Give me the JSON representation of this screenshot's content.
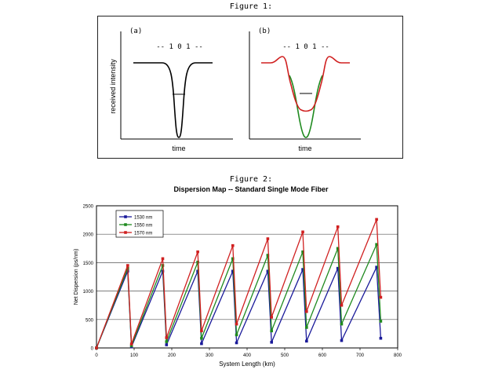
{
  "figure1": {
    "caption": "Figure 1:",
    "panels": [
      {
        "label": "(a)",
        "bits": "-- 1 0 1 --",
        "ylabel": "received intensity",
        "xlabel": "time"
      },
      {
        "label": "(b)",
        "bits": "-- 1 0 1 --",
        "xlabel": "time"
      }
    ],
    "colors": {
      "trace_a": "#000000",
      "trace_b_red": "#d02020",
      "trace_b_green": "#1f8a1f"
    }
  },
  "figure2": {
    "caption": "Figure 2:",
    "title": "Dispersion Map -- Standard Single Mode Fiber"
  },
  "chart_data": {
    "type": "line",
    "title": "Dispersion Map -- Standard Single Mode Fiber",
    "xlabel": "System Length (km)",
    "ylabel": "Net Dispersion (ps/nm)",
    "xlim": [
      0,
      800
    ],
    "ylim": [
      0,
      2500
    ],
    "xticks": [
      0,
      100,
      200,
      300,
      400,
      500,
      600,
      700,
      800
    ],
    "yticks": [
      0,
      500,
      1000,
      1500,
      2000,
      2500
    ],
    "grid": "horizontal",
    "legend": "top-left",
    "series": [
      {
        "name": "1530 nm",
        "color": "#1a1a9a",
        "points": [
          [
            0,
            0
          ],
          [
            83,
            1350
          ],
          [
            93,
            20
          ],
          [
            176,
            1350
          ],
          [
            186,
            55
          ],
          [
            269,
            1350
          ],
          [
            279,
            75
          ],
          [
            362,
            1350
          ],
          [
            372,
            90
          ],
          [
            455,
            1350
          ],
          [
            465,
            100
          ],
          [
            548,
            1380
          ],
          [
            558,
            120
          ],
          [
            641,
            1400
          ],
          [
            651,
            130
          ],
          [
            744,
            1420
          ],
          [
            755,
            170
          ]
        ]
      },
      {
        "name": "1550 nm",
        "color": "#1f8a1f",
        "points": [
          [
            0,
            0
          ],
          [
            83,
            1400
          ],
          [
            93,
            40
          ],
          [
            176,
            1450
          ],
          [
            186,
            110
          ],
          [
            269,
            1510
          ],
          [
            279,
            170
          ],
          [
            362,
            1570
          ],
          [
            372,
            230
          ],
          [
            455,
            1630
          ],
          [
            465,
            300
          ],
          [
            548,
            1690
          ],
          [
            558,
            360
          ],
          [
            641,
            1750
          ],
          [
            651,
            420
          ],
          [
            744,
            1820
          ],
          [
            755,
            470
          ]
        ]
      },
      {
        "name": "1570 nm",
        "color": "#d02020",
        "points": [
          [
            0,
            0
          ],
          [
            83,
            1450
          ],
          [
            93,
            70
          ],
          [
            176,
            1570
          ],
          [
            186,
            180
          ],
          [
            269,
            1690
          ],
          [
            279,
            300
          ],
          [
            362,
            1800
          ],
          [
            372,
            420
          ],
          [
            455,
            1920
          ],
          [
            465,
            540
          ],
          [
            548,
            2040
          ],
          [
            558,
            640
          ],
          [
            641,
            2130
          ],
          [
            651,
            750
          ],
          [
            744,
            2260
          ],
          [
            755,
            890
          ]
        ]
      }
    ]
  }
}
